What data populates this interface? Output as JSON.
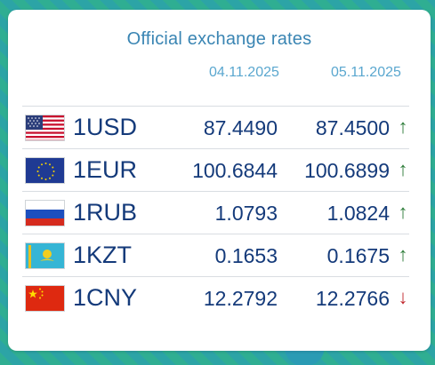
{
  "title": "Official exchange rates",
  "dates": [
    "04.11.2025",
    "05.11.2025"
  ],
  "rates": [
    {
      "code": "1USD",
      "flag": "us-flag-icon",
      "prev": "87.4490",
      "curr": "87.4500",
      "trend": "up",
      "arrow": "↑"
    },
    {
      "code": "1EUR",
      "flag": "eu-flag-icon",
      "prev": "100.6844",
      "curr": "100.6899",
      "trend": "up",
      "arrow": "↑"
    },
    {
      "code": "1RUB",
      "flag": "ru-flag-icon",
      "prev": "1.0793",
      "curr": "1.0824",
      "trend": "up",
      "arrow": "↑"
    },
    {
      "code": "1KZT",
      "flag": "kz-flag-icon",
      "prev": "0.1653",
      "curr": "0.1675",
      "trend": "up",
      "arrow": "↑"
    },
    {
      "code": "1CNY",
      "flag": "cn-flag-icon",
      "prev": "12.2792",
      "curr": "12.2766",
      "trend": "down",
      "arrow": "↓"
    }
  ],
  "colors": {
    "title": "#3a85b3",
    "value": "#143a7a",
    "up": "#2e7d3a",
    "down": "#c0272d"
  }
}
